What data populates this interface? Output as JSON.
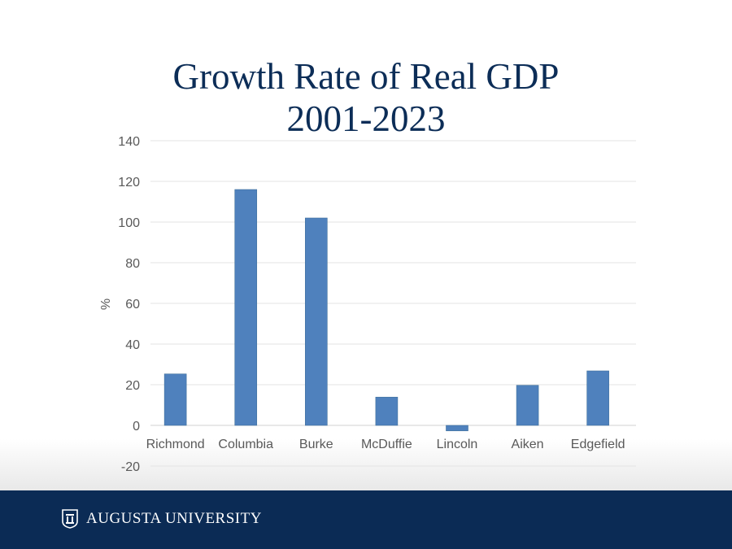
{
  "chart_data": {
    "type": "bar",
    "title": "Growth Rate of Real GDP 2001-2023",
    "title_lines": [
      "Growth Rate of Real GDP",
      "2001-2023"
    ],
    "xlabel": "",
    "ylabel": "%",
    "ylim": [
      -20,
      140
    ],
    "yticks": [
      -20,
      0,
      20,
      40,
      60,
      80,
      100,
      120,
      140
    ],
    "grid": true,
    "categories": [
      "Richmond",
      "Columbia",
      "Burke",
      "McDuffie",
      "Lincoln",
      "Aiken",
      "Edgefield"
    ],
    "values": [
      25.3,
      116,
      102,
      13.9,
      -2.7,
      19.7,
      26.8
    ],
    "bar_color": "#4f81bd"
  },
  "footer": {
    "brand": "AUGUSTA UNIVERSITY",
    "background": "#0b2b55"
  }
}
